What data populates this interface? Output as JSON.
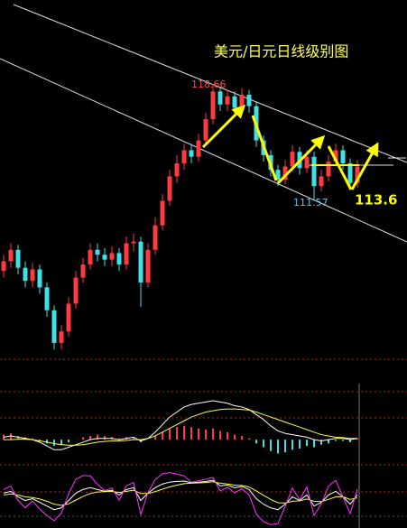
{
  "chart_data": {
    "type": "candlestick",
    "title": "美元/日元日线级别图",
    "up_color": "#ff3b3b",
    "down_color": "#3fe0e8",
    "ylim": [
      101.8,
      123.8
    ],
    "open": [
      107.2,
      107.8,
      108.5,
      107.4,
      106.6,
      107.3,
      106.2,
      104.8,
      102.8,
      103.5,
      105.2,
      106.8,
      107.6,
      108.5,
      108.2,
      107.9,
      108.3,
      107.6,
      108.9,
      109.0,
      106.5,
      108.5,
      110.0,
      111.5,
      113.0,
      113.8,
      114.6,
      114.2,
      115.2,
      116.5,
      118.2,
      117.4,
      117.9,
      117.2,
      118.0,
      117.3,
      115.2,
      114.3,
      113.4,
      112.8,
      113.6,
      114.5,
      113.5,
      114.2,
      112.4,
      113.0,
      113.9,
      114.6,
      113.8,
      112.6
    ],
    "high": [
      108.2,
      108.9,
      108.8,
      107.8,
      107.7,
      107.6,
      106.5,
      105.1,
      103.9,
      105.6,
      107.2,
      108.0,
      108.9,
      108.9,
      108.6,
      108.7,
      108.6,
      109.3,
      109.5,
      109.3,
      108.9,
      110.5,
      111.9,
      113.4,
      114.3,
      115.0,
      115.0,
      115.6,
      116.9,
      118.66,
      118.5,
      118.3,
      118.2,
      118.4,
      118.3,
      117.6,
      115.5,
      114.6,
      113.7,
      114.0,
      114.9,
      114.8,
      114.6,
      114.5,
      113.4,
      114.3,
      115.0,
      114.9,
      114.1,
      114.0
    ],
    "low": [
      106.8,
      107.4,
      107.0,
      106.2,
      106.2,
      105.8,
      104.4,
      102.4,
      102.4,
      103.2,
      104.9,
      106.5,
      107.3,
      107.8,
      107.5,
      107.5,
      107.2,
      107.3,
      108.4,
      105.0,
      106.2,
      108.2,
      109.7,
      111.2,
      112.6,
      113.4,
      113.8,
      113.9,
      114.9,
      116.2,
      117.0,
      117.0,
      116.8,
      116.9,
      116.9,
      114.8,
      113.9,
      113.0,
      112.4,
      112.5,
      113.3,
      113.1,
      113.2,
      111.57,
      112.1,
      112.7,
      113.6,
      113.4,
      112.2,
      112.3
    ],
    "close": [
      107.8,
      108.5,
      107.4,
      106.6,
      107.3,
      106.2,
      104.8,
      102.8,
      103.5,
      105.2,
      106.8,
      107.6,
      108.5,
      108.2,
      107.9,
      108.3,
      107.6,
      108.9,
      109.0,
      106.5,
      108.5,
      110.0,
      111.5,
      113.0,
      113.8,
      114.6,
      114.2,
      115.2,
      116.5,
      118.2,
      117.4,
      117.9,
      117.2,
      118.0,
      117.3,
      115.2,
      114.3,
      113.4,
      112.8,
      113.6,
      114.5,
      113.5,
      114.2,
      112.4,
      113.0,
      113.9,
      114.6,
      113.8,
      112.6,
      113.6
    ],
    "annotations": [
      "118.66",
      "111.57",
      "113.6"
    ],
    "macd": {
      "ylim": [
        -1.0,
        1.8
      ],
      "hist": [
        0.2,
        0.25,
        0.15,
        0.1,
        0.05,
        -0.05,
        -0.15,
        -0.25,
        -0.2,
        -0.1,
        0.0,
        0.1,
        0.15,
        0.2,
        0.15,
        0.1,
        0.05,
        0.1,
        0.1,
        -0.1,
        0.0,
        0.15,
        0.3,
        0.45,
        0.5,
        0.55,
        0.5,
        0.45,
        0.4,
        0.45,
        0.35,
        0.3,
        0.2,
        0.15,
        0.05,
        -0.15,
        -0.3,
        -0.45,
        -0.55,
        -0.5,
        -0.4,
        -0.35,
        -0.25,
        -0.3,
        -0.2,
        -0.15,
        -0.05,
        -0.05,
        -0.1,
        0.05
      ],
      "series": [
        {
          "color": "#ffffff",
          "values": [
            0.1,
            0.15,
            0.1,
            0.05,
            0.0,
            -0.1,
            -0.25,
            -0.4,
            -0.4,
            -0.3,
            -0.2,
            -0.1,
            0.0,
            0.05,
            0.05,
            0.05,
            0.0,
            0.05,
            0.1,
            -0.05,
            0.05,
            0.3,
            0.6,
            0.9,
            1.1,
            1.3,
            1.4,
            1.45,
            1.5,
            1.55,
            1.5,
            1.45,
            1.35,
            1.3,
            1.2,
            1.0,
            0.8,
            0.55,
            0.35,
            0.25,
            0.2,
            0.15,
            0.1,
            0.0,
            -0.05,
            0.0,
            0.05,
            0.05,
            0.0,
            0.05
          ]
        },
        {
          "color": "#ffff33",
          "values": [
            0.0,
            0.0,
            0.02,
            0.02,
            0.0,
            -0.05,
            -0.1,
            -0.15,
            -0.2,
            -0.22,
            -0.22,
            -0.2,
            -0.15,
            -0.1,
            -0.07,
            -0.05,
            -0.05,
            -0.03,
            0.0,
            0.0,
            0.05,
            0.15,
            0.3,
            0.45,
            0.6,
            0.75,
            0.9,
            1.0,
            1.1,
            1.15,
            1.2,
            1.22,
            1.22,
            1.2,
            1.18,
            1.1,
            1.0,
            0.9,
            0.8,
            0.7,
            0.6,
            0.5,
            0.4,
            0.3,
            0.2,
            0.15,
            0.1,
            0.08,
            0.05,
            0.05
          ]
        }
      ]
    },
    "kdj": {
      "ylim": [
        -30,
        120
      ],
      "series": [
        {
          "color": "#ffffff",
          "values": [
            60,
            65,
            50,
            40,
            45,
            35,
            25,
            15,
            20,
            40,
            60,
            70,
            75,
            70,
            65,
            68,
            55,
            70,
            75,
            40,
            60,
            75,
            85,
            90,
            92,
            93,
            88,
            90,
            92,
            95,
            80,
            82,
            75,
            78,
            70,
            45,
            30,
            20,
            15,
            30,
            50,
            40,
            55,
            25,
            35,
            55,
            65,
            50,
            30,
            55
          ]
        },
        {
          "color": "#ffff33",
          "values": [
            55,
            58,
            55,
            50,
            48,
            44,
            38,
            30,
            27,
            31,
            41,
            51,
            59,
            63,
            64,
            65,
            62,
            65,
            68,
            59,
            59,
            64,
            71,
            77,
            82,
            86,
            87,
            88,
            89,
            91,
            87,
            85,
            82,
            81,
            77,
            66,
            54,
            43,
            34,
            33,
            38,
            39,
            44,
            38,
            37,
            43,
            50,
            50,
            43,
            47
          ]
        },
        {
          "color": "#ff33ff",
          "values": [
            70,
            79,
            40,
            20,
            39,
            17,
            -1,
            -15,
            6,
            58,
            98,
            108,
            107,
            84,
            67,
            74,
            41,
            80,
            89,
            2,
            62,
            97,
            113,
            116,
            112,
            107,
            90,
            94,
            98,
            103,
            66,
            76,
            61,
            72,
            56,
            3,
            -18,
            -26,
            -23,
            24,
            74,
            42,
            77,
            -1,
            31,
            79,
            95,
            50,
            4,
            71
          ]
        }
      ]
    }
  }
}
